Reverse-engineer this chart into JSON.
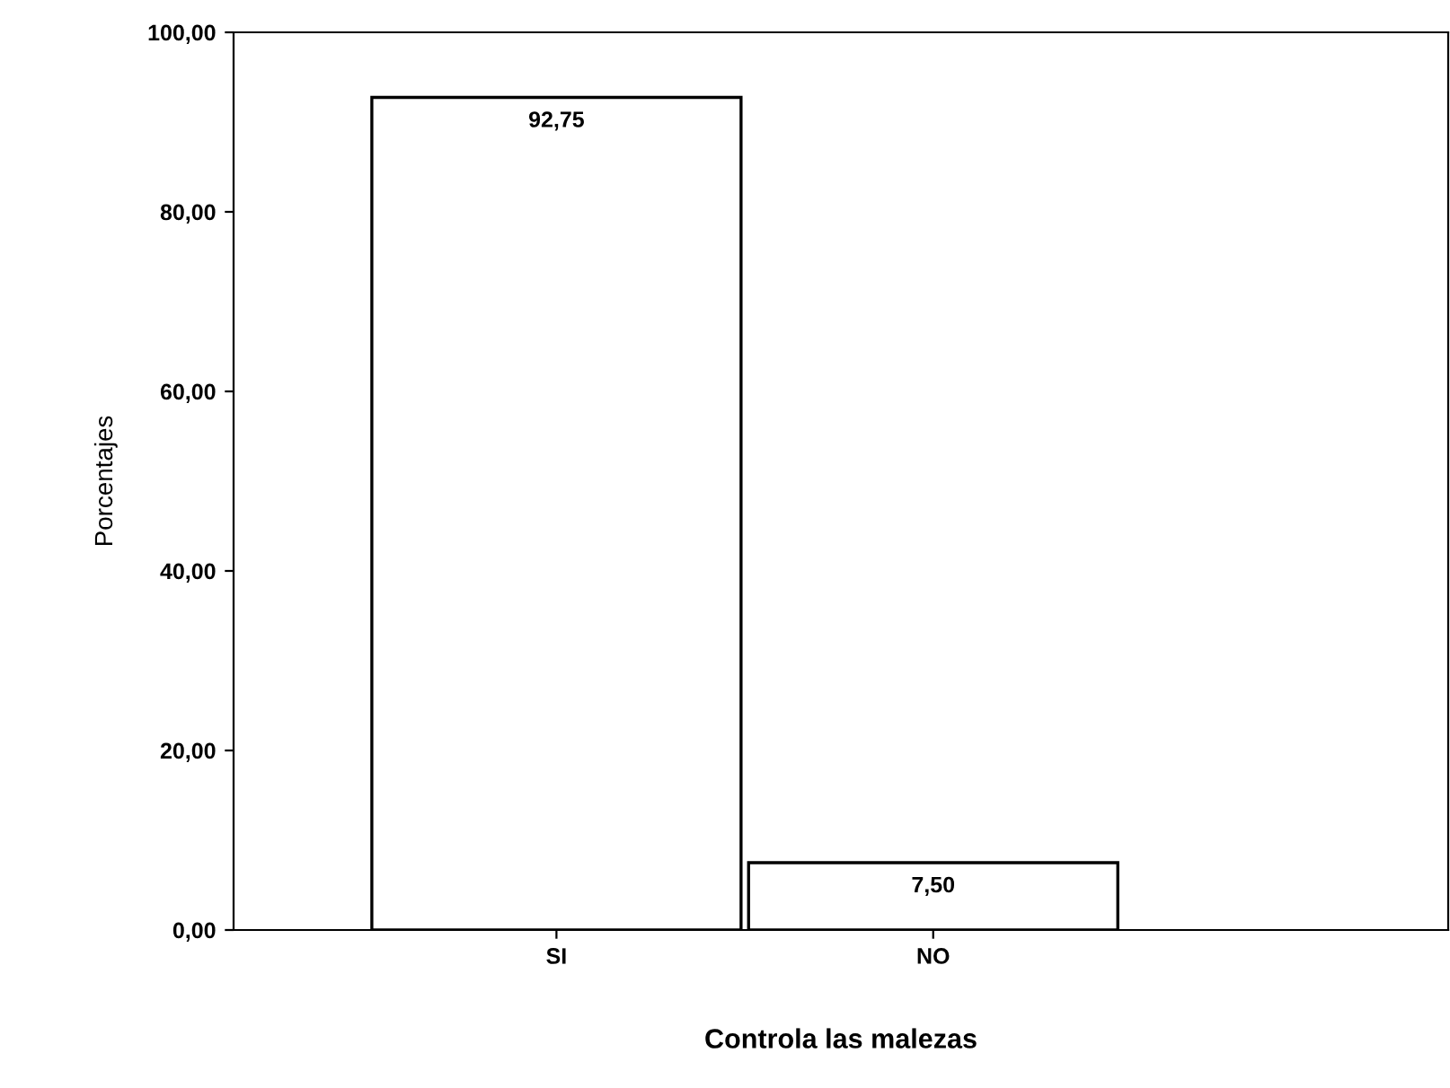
{
  "chart_data": {
    "type": "bar",
    "xlabel": "Controla las malezas",
    "ylabel": "Porcentajes",
    "categories": [
      "SI",
      "NO"
    ],
    "values": [
      92.75,
      7.5
    ],
    "value_labels": [
      "92,75",
      "7,50"
    ],
    "color": "#ffffff",
    "ylim": [
      0,
      100
    ],
    "yticks": [
      {
        "value": 0,
        "label": "0,00"
      },
      {
        "value": 20,
        "label": "20,00"
      },
      {
        "value": 40,
        "label": "40,00"
      },
      {
        "value": 60,
        "label": "60,00"
      },
      {
        "value": 80,
        "label": "80,00"
      },
      {
        "value": 100,
        "label": "100,00"
      }
    ],
    "grid": false,
    "legend": false
  }
}
